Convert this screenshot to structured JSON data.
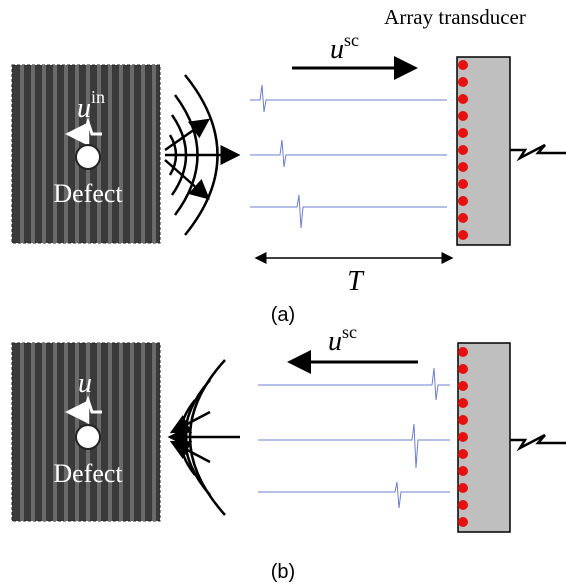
{
  "panels": [
    {
      "label": "(a)",
      "transducer": "Array transducer",
      "wave_label": {
        "base": "u",
        "sup": "sc"
      },
      "incident_label": {
        "base": "u",
        "sup": "in"
      },
      "defect": "Defect",
      "time_label": "T"
    },
    {
      "label": "(b)",
      "wave_label": {
        "base": "u",
        "sup": "sc"
      },
      "incident_label": {
        "base": "u"
      },
      "defect": "Defect"
    }
  ]
}
